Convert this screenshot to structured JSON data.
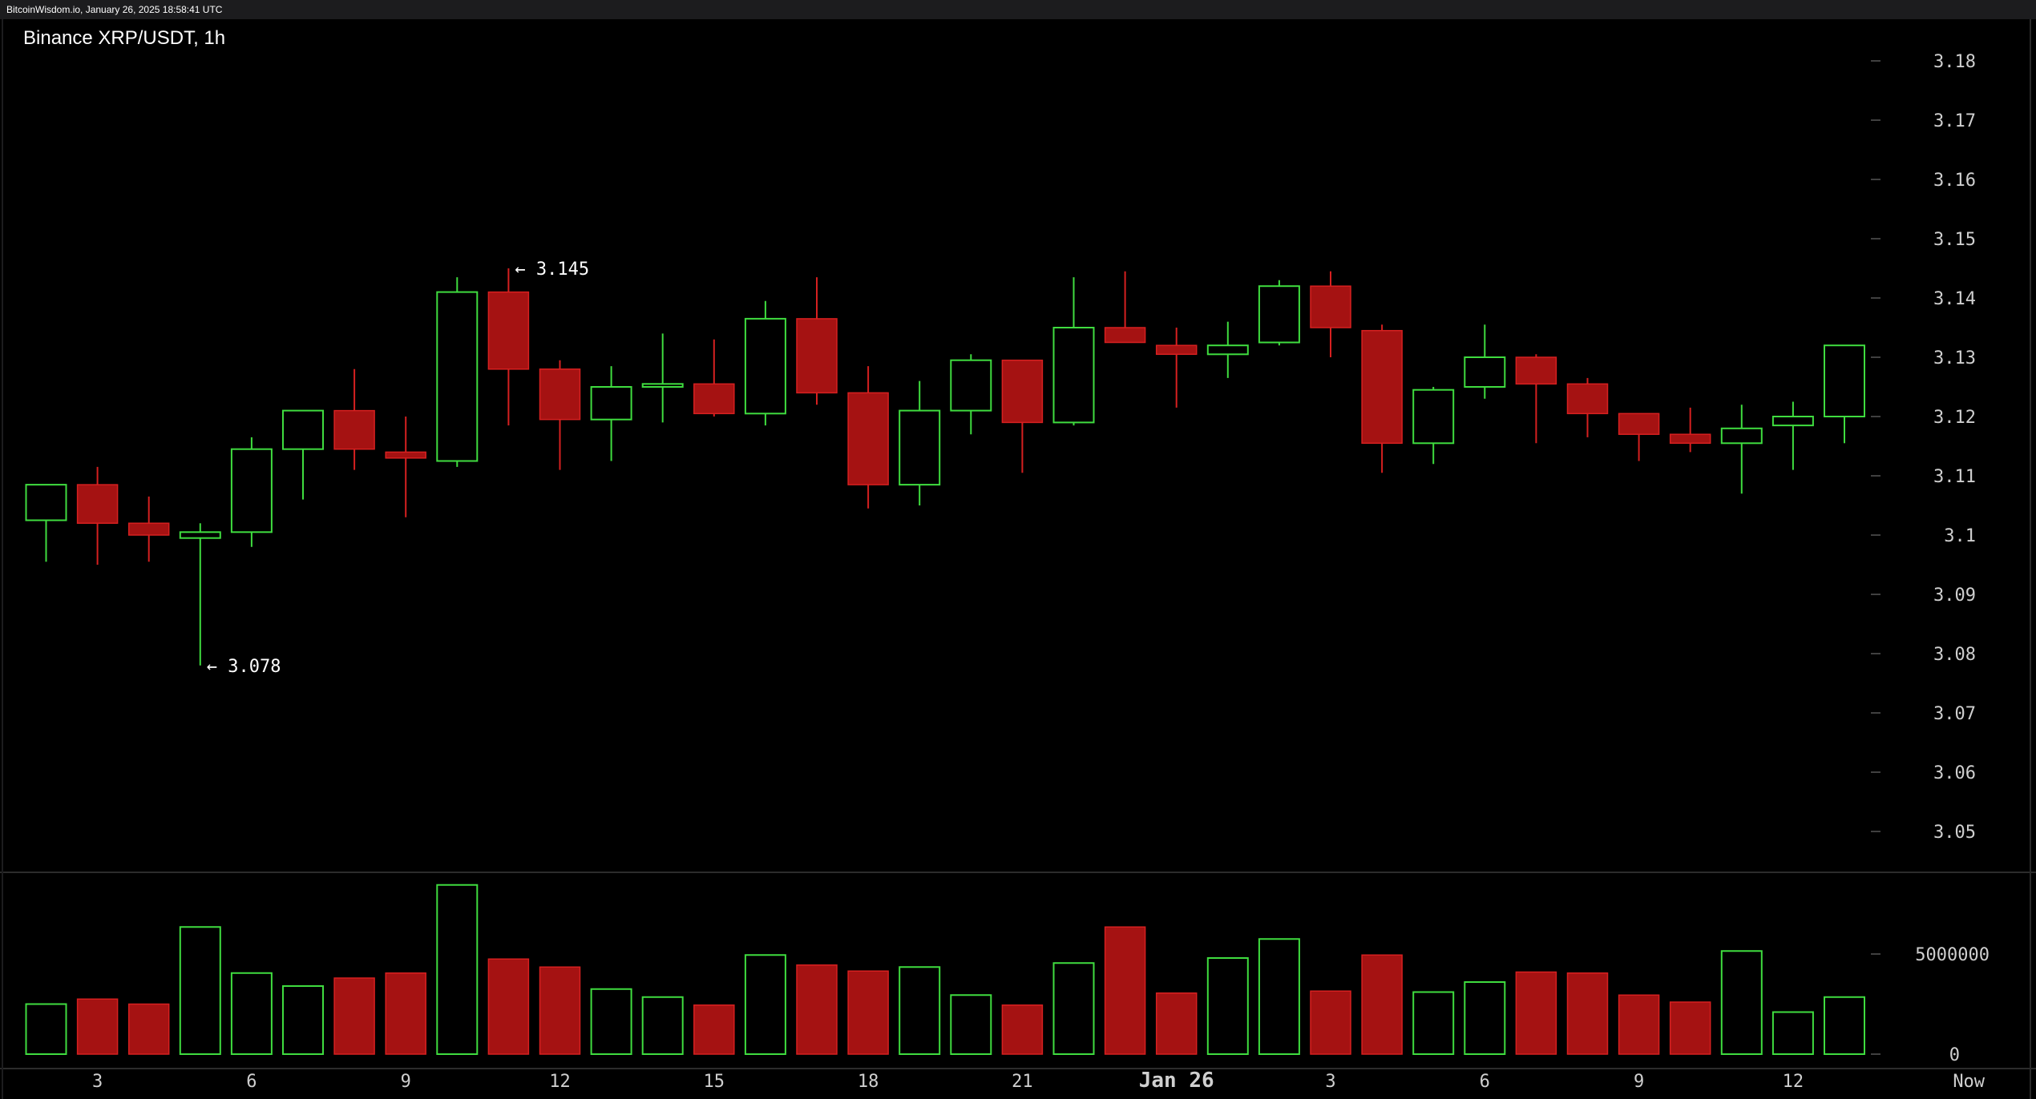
{
  "watermark": "BitcoinWisdom.io, January 26, 2025 18:58:41 UTC",
  "chart_data": {
    "type": "candlestick",
    "title": "Binance XRP/USDT, 1h",
    "price_ylim": [
      3.04,
      3.19
    ],
    "price_ticks": [
      {
        "value": 3.18,
        "label": "3.18"
      },
      {
        "value": 3.17,
        "label": "3.17"
      },
      {
        "value": 3.16,
        "label": "3.16"
      },
      {
        "value": 3.15,
        "label": "3.15"
      },
      {
        "value": 3.14,
        "label": "3.14"
      },
      {
        "value": 3.13,
        "label": "3.13"
      },
      {
        "value": 3.12,
        "label": "3.12"
      },
      {
        "value": 3.11,
        "label": "3.11"
      },
      {
        "value": 3.1,
        "label": "3.1"
      },
      {
        "value": 3.09,
        "label": "3.09"
      },
      {
        "value": 3.08,
        "label": "3.08"
      },
      {
        "value": 3.07,
        "label": "3.07"
      },
      {
        "value": 3.06,
        "label": "3.06"
      },
      {
        "value": 3.05,
        "label": "3.05"
      }
    ],
    "volume_ylim": [
      0,
      8400000
    ],
    "volume_ticks": [
      {
        "value": 5000000,
        "label": "5000000"
      },
      {
        "value": 0,
        "label": "0"
      }
    ],
    "x_ticks": [
      {
        "index": 1,
        "label": "3"
      },
      {
        "index": 4,
        "label": "6"
      },
      {
        "index": 7,
        "label": "9"
      },
      {
        "index": 10,
        "label": "12"
      },
      {
        "index": 13,
        "label": "15"
      },
      {
        "index": 16,
        "label": "18"
      },
      {
        "index": 19,
        "label": "21"
      },
      {
        "index": 22,
        "label": "Jan 26"
      },
      {
        "index": 25,
        "label": "3"
      },
      {
        "index": 28,
        "label": "6"
      },
      {
        "index": 31,
        "label": "9"
      },
      {
        "index": 34,
        "label": "12"
      },
      {
        "index": 37,
        "label": "Now"
      }
    ],
    "annotations": [
      {
        "index": 9,
        "value": 3.145,
        "text": "← 3.145"
      },
      {
        "index": 3,
        "value": 3.078,
        "text": "← 3.078"
      }
    ],
    "candles": [
      {
        "o": 3.1025,
        "h": 3.1085,
        "l": 3.0955,
        "c": 3.1085,
        "v": 2500000
      },
      {
        "o": 3.1085,
        "h": 3.1115,
        "l": 3.095,
        "c": 3.102,
        "v": 2750000
      },
      {
        "o": 3.102,
        "h": 3.1065,
        "l": 3.0955,
        "c": 3.1,
        "v": 2500000
      },
      {
        "o": 3.0995,
        "h": 3.102,
        "l": 3.078,
        "c": 3.1005,
        "v": 6350000
      },
      {
        "o": 3.1005,
        "h": 3.1165,
        "l": 3.098,
        "c": 3.1145,
        "v": 4050000
      },
      {
        "o": 3.1145,
        "h": 3.121,
        "l": 3.106,
        "c": 3.121,
        "v": 3400000
      },
      {
        "o": 3.121,
        "h": 3.128,
        "l": 3.111,
        "c": 3.1145,
        "v": 3800000
      },
      {
        "o": 3.114,
        "h": 3.12,
        "l": 3.103,
        "c": 3.113,
        "v": 4050000
      },
      {
        "o": 3.1125,
        "h": 3.1435,
        "l": 3.1115,
        "c": 3.141,
        "v": 8450000
      },
      {
        "o": 3.141,
        "h": 3.145,
        "l": 3.1185,
        "c": 3.128,
        "v": 4750000
      },
      {
        "o": 3.128,
        "h": 3.1295,
        "l": 3.111,
        "c": 3.1195,
        "v": 4350000
      },
      {
        "o": 3.1195,
        "h": 3.1285,
        "l": 3.1125,
        "c": 3.125,
        "v": 3250000
      },
      {
        "o": 3.125,
        "h": 3.134,
        "l": 3.119,
        "c": 3.1255,
        "v": 2850000
      },
      {
        "o": 3.1255,
        "h": 3.133,
        "l": 3.12,
        "c": 3.1205,
        "v": 2450000
      },
      {
        "o": 3.1205,
        "h": 3.1395,
        "l": 3.1185,
        "c": 3.1365,
        "v": 4950000
      },
      {
        "o": 3.1365,
        "h": 3.1435,
        "l": 3.122,
        "c": 3.124,
        "v": 4450000
      },
      {
        "o": 3.124,
        "h": 3.1285,
        "l": 3.1045,
        "c": 3.1085,
        "v": 4150000
      },
      {
        "o": 3.1085,
        "h": 3.126,
        "l": 3.105,
        "c": 3.121,
        "v": 4350000
      },
      {
        "o": 3.121,
        "h": 3.1305,
        "l": 3.117,
        "c": 3.1295,
        "v": 2950000
      },
      {
        "o": 3.1295,
        "h": 3.1295,
        "l": 3.1105,
        "c": 3.119,
        "v": 2450000
      },
      {
        "o": 3.119,
        "h": 3.1435,
        "l": 3.1185,
        "c": 3.135,
        "v": 4550000
      },
      {
        "o": 3.135,
        "h": 3.1445,
        "l": 3.1325,
        "c": 3.1325,
        "v": 6350000
      },
      {
        "o": 3.132,
        "h": 3.135,
        "l": 3.1215,
        "c": 3.1305,
        "v": 3050000
      },
      {
        "o": 3.1305,
        "h": 3.136,
        "l": 3.1265,
        "c": 3.132,
        "v": 4800000
      },
      {
        "o": 3.1325,
        "h": 3.143,
        "l": 3.132,
        "c": 3.142,
        "v": 5750000
      },
      {
        "o": 3.142,
        "h": 3.1445,
        "l": 3.13,
        "c": 3.135,
        "v": 3150000
      },
      {
        "o": 3.1345,
        "h": 3.1355,
        "l": 3.1105,
        "c": 3.1155,
        "v": 4950000
      },
      {
        "o": 3.1155,
        "h": 3.125,
        "l": 3.112,
        "c": 3.1245,
        "v": 3100000
      },
      {
        "o": 3.125,
        "h": 3.1355,
        "l": 3.123,
        "c": 3.13,
        "v": 3600000
      },
      {
        "o": 3.13,
        "h": 3.1305,
        "l": 3.1155,
        "c": 3.1255,
        "v": 4100000
      },
      {
        "o": 3.1255,
        "h": 3.1265,
        "l": 3.1165,
        "c": 3.1205,
        "v": 4050000
      },
      {
        "o": 3.1205,
        "h": 3.1205,
        "l": 3.1125,
        "c": 3.117,
        "v": 2950000
      },
      {
        "o": 3.117,
        "h": 3.1215,
        "l": 3.114,
        "c": 3.1155,
        "v": 2600000
      },
      {
        "o": 3.1155,
        "h": 3.122,
        "l": 3.107,
        "c": 3.118,
        "v": 5150000
      },
      {
        "o": 3.1185,
        "h": 3.1225,
        "l": 3.111,
        "c": 3.12,
        "v": 2100000
      },
      {
        "o": 3.12,
        "h": 3.132,
        "l": 3.1155,
        "c": 3.132,
        "v": 2850000
      }
    ]
  }
}
